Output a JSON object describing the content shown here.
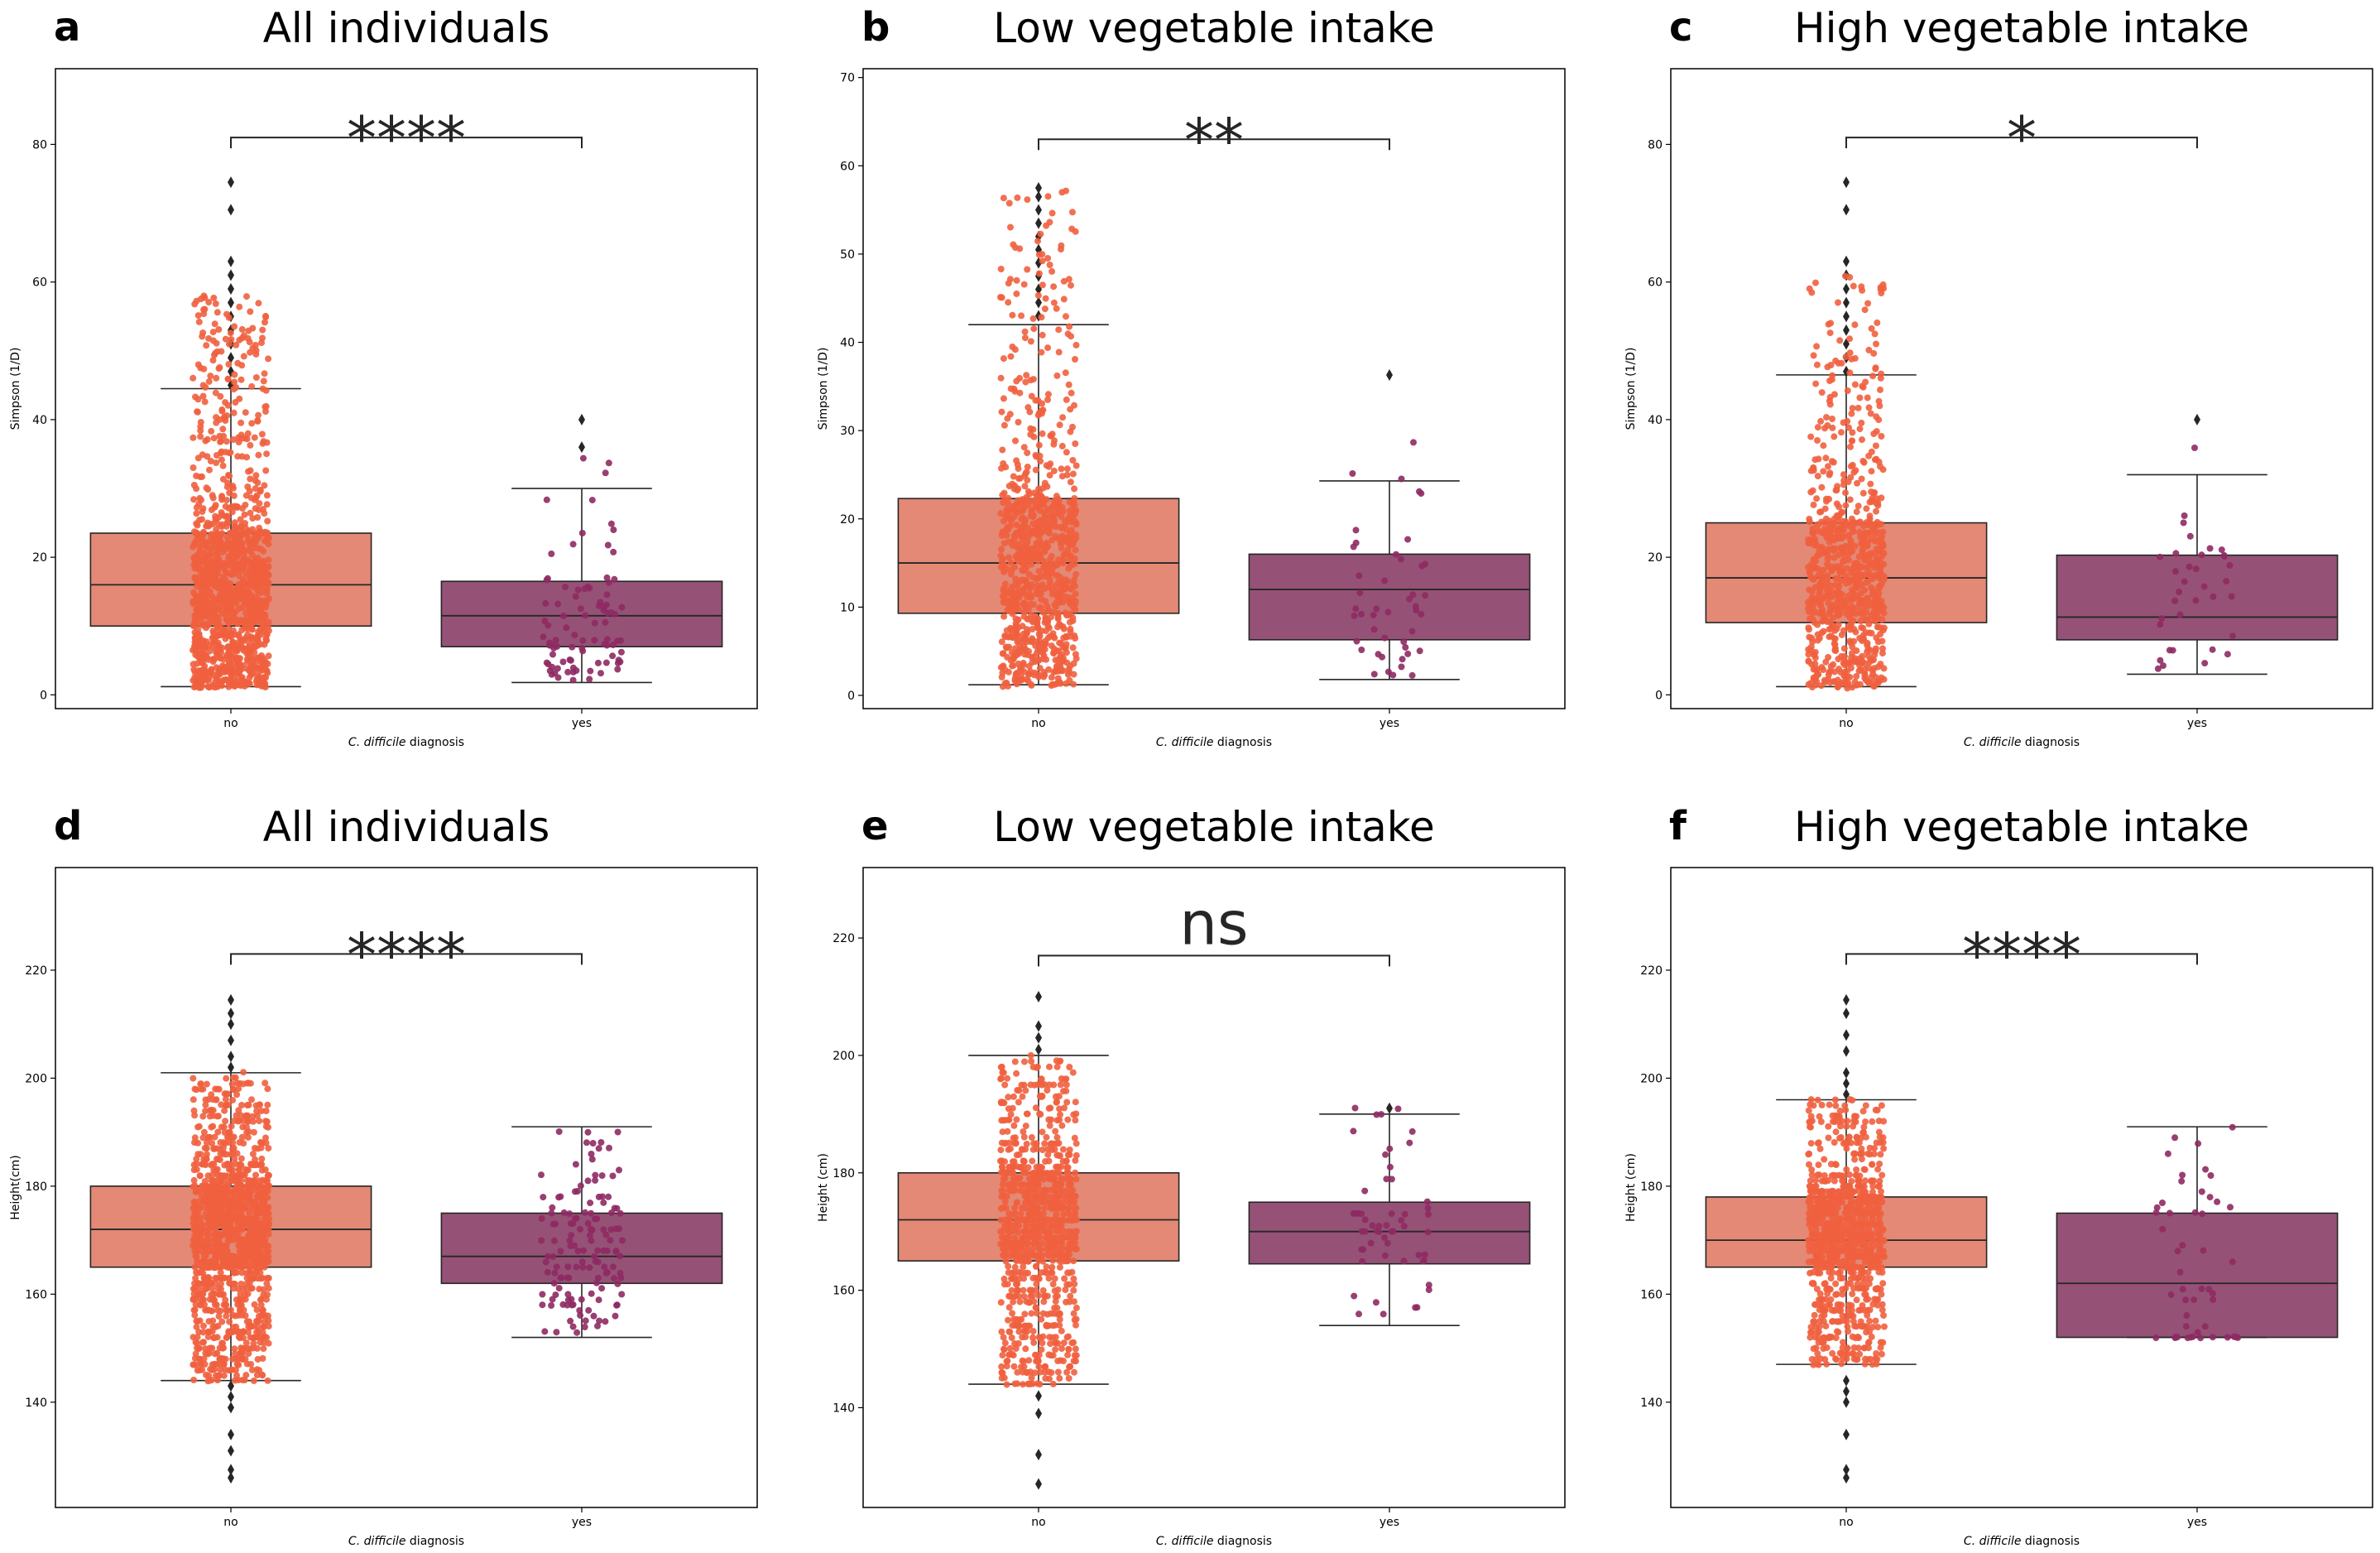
{
  "figure": {
    "palette": {
      "no_box": "#e38976",
      "no_points": "#f0603f",
      "yes_box": "#955276",
      "yes_points": "#8e2a63",
      "outlier": "#262626",
      "line": "#262626"
    }
  },
  "chart_data": [
    {
      "panel": "a",
      "type": "box",
      "title": "All individuals",
      "xlabel_italic": "C. difficile",
      "xlabel_rest": " diagnosis",
      "ylabel": "Simpson (1/D)",
      "categories": [
        "no",
        "yes"
      ],
      "ylim": [
        -2,
        91
      ],
      "yticks": [
        0,
        20,
        40,
        60,
        80
      ],
      "boxes": [
        {
          "category": "no",
          "q1": 10,
          "median": 16,
          "q3": 23.5,
          "whisker_low": 1.2,
          "whisker_high": 44.5,
          "point_min": 1,
          "point_max": 58,
          "n_points": 1300,
          "outliers": [
            45,
            47,
            49,
            51,
            53,
            55,
            57,
            59,
            61,
            63,
            70.5,
            74.5
          ]
        },
        {
          "category": "yes",
          "q1": 7,
          "median": 11.5,
          "q3": 16.5,
          "whisker_low": 1.8,
          "whisker_high": 30,
          "point_min": 2,
          "point_max": 36,
          "n_points": 90,
          "outliers": [
            36,
            40
          ]
        }
      ],
      "annotation": {
        "text": "****",
        "bracket_y": 81
      }
    },
    {
      "panel": "b",
      "type": "box",
      "title": "Low vegetable intake",
      "xlabel_italic": "C. difficile",
      "xlabel_rest": " diagnosis",
      "ylabel": "Simpson (1/D)",
      "categories": [
        "no",
        "yes"
      ],
      "ylim": [
        -1.5,
        71
      ],
      "yticks": [
        0,
        10,
        20,
        30,
        40,
        50,
        60,
        70
      ],
      "boxes": [
        {
          "category": "no",
          "q1": 9.3,
          "median": 15,
          "q3": 22.3,
          "whisker_low": 1.2,
          "whisker_high": 42,
          "point_min": 1,
          "point_max": 57.5,
          "n_points": 900,
          "outliers": [
            43,
            44.5,
            46,
            47.5,
            49,
            50.5,
            52,
            53.5,
            55,
            56.5,
            57.5
          ]
        },
        {
          "category": "yes",
          "q1": 6.3,
          "median": 12,
          "q3": 16,
          "whisker_low": 1.8,
          "whisker_high": 24.3,
          "point_min": 2,
          "point_max": 31,
          "n_points": 45,
          "outliers": [
            36.3
          ]
        }
      ],
      "annotation": {
        "text": "**",
        "bracket_y": 63
      }
    },
    {
      "panel": "c",
      "type": "box",
      "title": "High vegetable intake",
      "xlabel_italic": "C. difficile",
      "xlabel_rest": " diagnosis",
      "ylabel": "Simpson (1/D)",
      "categories": [
        "no",
        "yes"
      ],
      "ylim": [
        -2,
        91
      ],
      "yticks": [
        0,
        20,
        40,
        60,
        80
      ],
      "boxes": [
        {
          "category": "no",
          "q1": 10.5,
          "median": 17,
          "q3": 25,
          "whisker_low": 1.2,
          "whisker_high": 46.5,
          "point_min": 1,
          "point_max": 61,
          "n_points": 800,
          "outliers": [
            47,
            49,
            51,
            53,
            55,
            57,
            59,
            61,
            63,
            70.5,
            74.5
          ]
        },
        {
          "category": "yes",
          "q1": 8,
          "median": 11.3,
          "q3": 20.3,
          "whisker_low": 3,
          "whisker_high": 32,
          "point_min": 3,
          "point_max": 40,
          "n_points": 35,
          "outliers": [
            40
          ]
        }
      ],
      "annotation": {
        "text": "*",
        "bracket_y": 81
      }
    },
    {
      "panel": "d",
      "type": "box",
      "title": "All individuals",
      "xlabel_italic": "C. difficile",
      "xlabel_rest": " diagnosis",
      "ylabel": "Height(cm)",
      "categories": [
        "no",
        "yes"
      ],
      "ylim": [
        120.5,
        239
      ],
      "yticks": [
        140,
        160,
        180,
        200,
        220
      ],
      "boxes": [
        {
          "category": "no",
          "q1": 165,
          "median": 172,
          "q3": 180,
          "whisker_low": 144,
          "whisker_high": 201,
          "point_min": 144,
          "point_max": 201,
          "n_points": 1300,
          "outliers": [
            126,
            127.5,
            131,
            134,
            139,
            141,
            143,
            202,
            204,
            207,
            210,
            212,
            214.5
          ]
        },
        {
          "category": "yes",
          "q1": 162,
          "median": 167,
          "q3": 175,
          "whisker_low": 152,
          "whisker_high": 191,
          "point_min": 152,
          "point_max": 191,
          "n_points": 140,
          "outliers": []
        }
      ],
      "annotation": {
        "text": "****",
        "bracket_y": 223
      }
    },
    {
      "panel": "e",
      "type": "box",
      "title": "Low vegetable intake",
      "xlabel_italic": "C. difficile",
      "xlabel_rest": " diagnosis",
      "ylabel": "Height (cm)",
      "categories": [
        "no",
        "yes"
      ],
      "ylim": [
        123,
        232
      ],
      "yticks": [
        140,
        160,
        180,
        200,
        220
      ],
      "boxes": [
        {
          "category": "no",
          "q1": 165,
          "median": 172,
          "q3": 180,
          "whisker_low": 144,
          "whisker_high": 200,
          "point_min": 144,
          "point_max": 200,
          "n_points": 900,
          "outliers": [
            127,
            132,
            139,
            142,
            201,
            203,
            205,
            210
          ]
        },
        {
          "category": "yes",
          "q1": 164.5,
          "median": 170,
          "q3": 175,
          "whisker_low": 154,
          "whisker_high": 190,
          "point_min": 154,
          "point_max": 191,
          "n_points": 55,
          "outliers": [
            191
          ]
        }
      ],
      "annotation": {
        "text": "ns",
        "bracket_y": 217
      }
    },
    {
      "panel": "f",
      "type": "box",
      "title": "High vegetable intake",
      "xlabel_italic": "C. difficile",
      "xlabel_rest": " diagnosis",
      "ylabel": "Height (cm)",
      "categories": [
        "no",
        "yes"
      ],
      "ylim": [
        120.5,
        239
      ],
      "yticks": [
        140,
        160,
        180,
        200,
        220
      ],
      "boxes": [
        {
          "category": "no",
          "q1": 165,
          "median": 170,
          "q3": 178,
          "whisker_low": 147,
          "whisker_high": 196,
          "point_min": 147,
          "point_max": 196,
          "n_points": 900,
          "outliers": [
            126,
            127.5,
            134,
            140,
            142,
            144,
            197,
            199,
            201,
            205,
            208,
            212,
            214.5
          ]
        },
        {
          "category": "yes",
          "q1": 152,
          "median": 162,
          "q3": 175,
          "whisker_low": 152,
          "whisker_high": 191,
          "point_min": 152,
          "point_max": 191,
          "n_points": 50,
          "outliers": []
        }
      ],
      "annotation": {
        "text": "****",
        "bracket_y": 223
      }
    }
  ]
}
